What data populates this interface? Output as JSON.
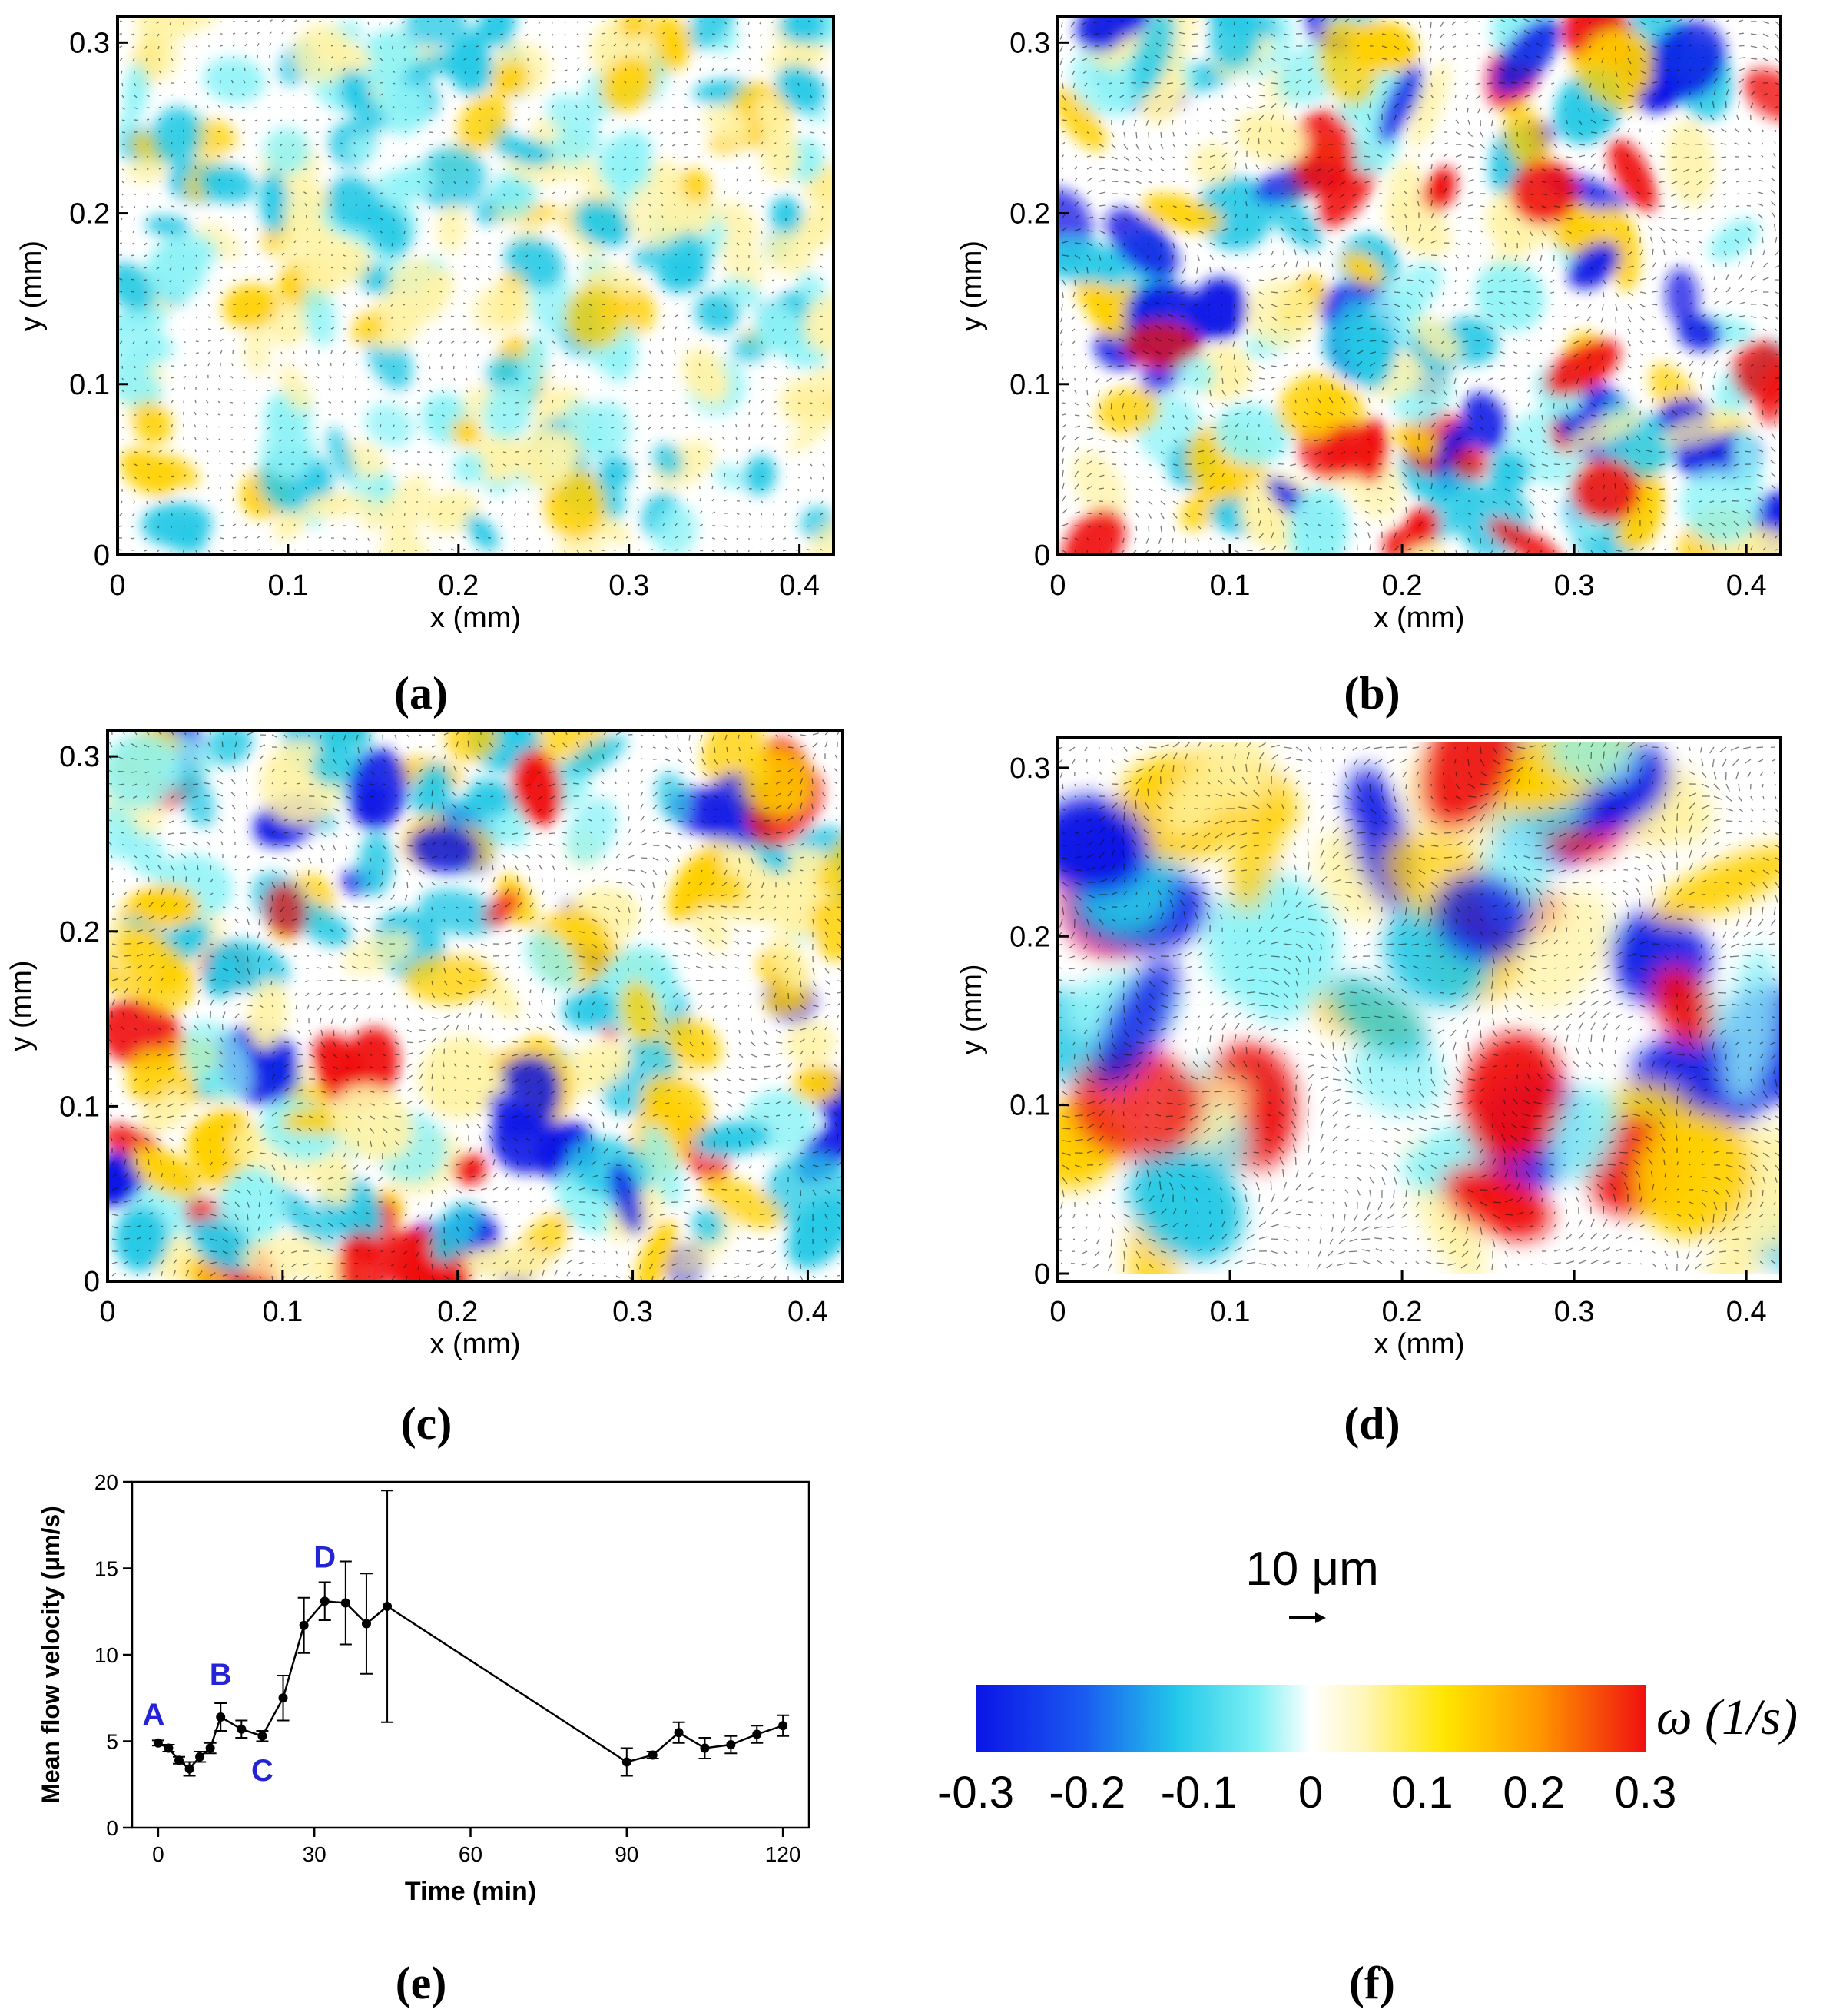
{
  "panels": [
    {
      "id": "a",
      "label": "(a)"
    },
    {
      "id": "b",
      "label": "(b)"
    },
    {
      "id": "c",
      "label": "(c)"
    },
    {
      "id": "d",
      "label": "(d)"
    },
    {
      "id": "e",
      "label": "(e)"
    },
    {
      "id": "f",
      "label": "(f)"
    }
  ],
  "colors": {
    "neg_strong": "#0a14e6",
    "neg_mid": "#27c9e6",
    "neg_light": "#8ff3f7",
    "zero": "#ffffff",
    "pos_light": "#fff3a8",
    "pos_mid": "#ffd000",
    "pos_strong": "#f01010",
    "annotation_letter": "#2424d6"
  },
  "field_plots": {
    "x_label": "x (mm)",
    "y_label": "y (mm)",
    "x_ticks": [
      "0",
      "0.1",
      "0.2",
      "0.3",
      "0.4"
    ],
    "y_ticks": [
      "0",
      "0.1",
      "0.2",
      "0.3"
    ],
    "xlim": [
      0,
      0.42
    ],
    "ylim": [
      0,
      0.315
    ]
  },
  "legend": {
    "scale_arrow_label": "10 μm",
    "colorbar_title": "ω (1/s)",
    "colorbar_ticks": [
      "-0.3",
      "-0.2",
      "-0.1",
      "0",
      "0.1",
      "0.2",
      "0.3"
    ],
    "colorbar_range": [
      -0.3,
      0.3
    ]
  },
  "chart_data": [
    {
      "type": "heatmap",
      "panel": "a",
      "title": "",
      "xlabel": "x (mm)",
      "ylabel": "y (mm)",
      "xlim": [
        0,
        0.42
      ],
      "ylim": [
        0,
        0.315
      ],
      "colorbar": "ω (1/s)",
      "note": "vorticity field with velocity vectors; weak vorticity"
    },
    {
      "type": "heatmap",
      "panel": "b",
      "xlabel": "x (mm)",
      "ylabel": "y (mm)",
      "xlim": [
        0,
        0.42
      ],
      "ylim": [
        0,
        0.315
      ],
      "colorbar": "ω (1/s)",
      "note": "vorticity field with velocity vectors; strong vortices"
    },
    {
      "type": "heatmap",
      "panel": "c",
      "xlabel": "x (mm)",
      "ylabel": "y (mm)",
      "xlim": [
        0,
        0.42
      ],
      "ylim": [
        0,
        0.315
      ],
      "colorbar": "ω (1/s)",
      "note": "vorticity field with velocity vectors"
    },
    {
      "type": "heatmap",
      "panel": "d",
      "xlabel": "x (mm)",
      "ylabel": "y (mm)",
      "xlim": [
        0,
        0.42
      ],
      "ylim": [
        0,
        0.315
      ],
      "colorbar": "ω (1/s)",
      "note": "vorticity field with velocity vectors; large coherent structures"
    },
    {
      "type": "line",
      "panel": "e",
      "title": "",
      "xlabel": "Time (min)",
      "ylabel": "Mean flow velocity (μm/s)",
      "xlim": [
        -5,
        125
      ],
      "ylim": [
        0,
        20
      ],
      "x_ticks": [
        "0",
        "30",
        "60",
        "90",
        "120"
      ],
      "y_ticks": [
        "0",
        "5",
        "10",
        "15",
        "20"
      ],
      "series": [
        {
          "name": "Mean flow velocity",
          "x": [
            0,
            2,
            4,
            6,
            8,
            10,
            12,
            16,
            20,
            24,
            28,
            32,
            36,
            40,
            44,
            90,
            95,
            100,
            105,
            110,
            115,
            120
          ],
          "y": [
            4.9,
            4.6,
            3.9,
            3.4,
            4.1,
            4.6,
            6.4,
            5.7,
            5.3,
            7.5,
            11.7,
            13.1,
            13.0,
            11.8,
            12.8,
            3.8,
            4.2,
            5.5,
            4.6,
            4.8,
            5.4,
            5.9
          ],
          "err": [
            0.15,
            0.2,
            0.2,
            0.4,
            0.3,
            0.3,
            0.8,
            0.5,
            0.3,
            1.3,
            1.6,
            1.1,
            2.4,
            2.9,
            6.7,
            0.8,
            0.2,
            0.6,
            0.6,
            0.5,
            0.5,
            0.6
          ]
        }
      ],
      "annotations": [
        {
          "text": "A",
          "x": 0,
          "y": 4.9
        },
        {
          "text": "B",
          "x": 12,
          "y": 6.4
        },
        {
          "text": "C",
          "x": 20,
          "y": 5.3
        },
        {
          "text": "D",
          "x": 32,
          "y": 13.1
        }
      ]
    }
  ]
}
